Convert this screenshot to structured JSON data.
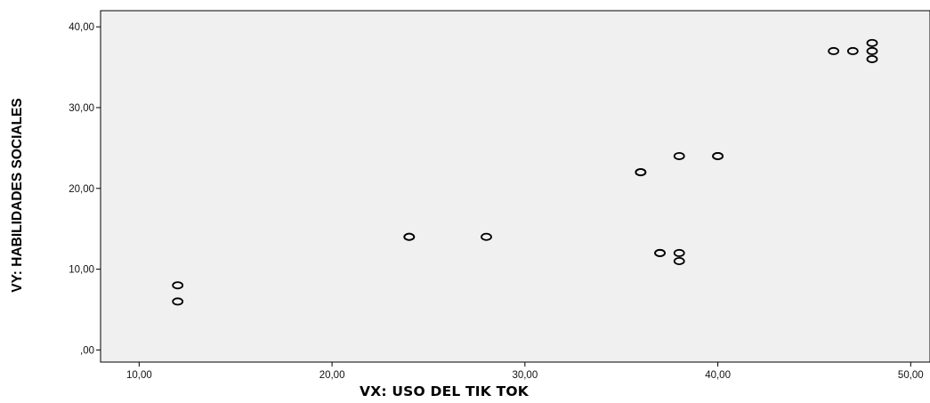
{
  "chart_data": {
    "type": "scatter",
    "xlabel": "VX: USO DEL TIK TOK",
    "ylabel": "VY: HABILIDADES SOCIALES",
    "xlim": [
      8,
      51
    ],
    "ylim": [
      -1.5,
      42
    ],
    "x_ticks": [
      10,
      20,
      30,
      40,
      50
    ],
    "x_tick_labels": [
      "10,00",
      "20,00",
      "30,00",
      "40,00",
      "50,00"
    ],
    "y_ticks": [
      0,
      10,
      20,
      30,
      40
    ],
    "y_tick_labels": [
      ",00",
      "10,00",
      "20,00",
      "30,00",
      "40,00"
    ],
    "grid": false,
    "marker": "hollow-circle",
    "colors": {
      "plot_background": "#f0f0f0",
      "marker_stroke": "#000000",
      "axis": "#000000"
    },
    "points": [
      {
        "x": 12,
        "y": 8
      },
      {
        "x": 12,
        "y": 6
      },
      {
        "x": 24,
        "y": 14
      },
      {
        "x": 24,
        "y": 14
      },
      {
        "x": 28,
        "y": 14
      },
      {
        "x": 36,
        "y": 22
      },
      {
        "x": 36,
        "y": 22
      },
      {
        "x": 38,
        "y": 24
      },
      {
        "x": 40,
        "y": 24
      },
      {
        "x": 40,
        "y": 24
      },
      {
        "x": 37,
        "y": 12
      },
      {
        "x": 37,
        "y": 12
      },
      {
        "x": 38,
        "y": 12
      },
      {
        "x": 38,
        "y": 11
      },
      {
        "x": 46,
        "y": 37
      },
      {
        "x": 47,
        "y": 37
      },
      {
        "x": 48,
        "y": 38
      },
      {
        "x": 48,
        "y": 37
      },
      {
        "x": 48,
        "y": 36
      }
    ]
  }
}
